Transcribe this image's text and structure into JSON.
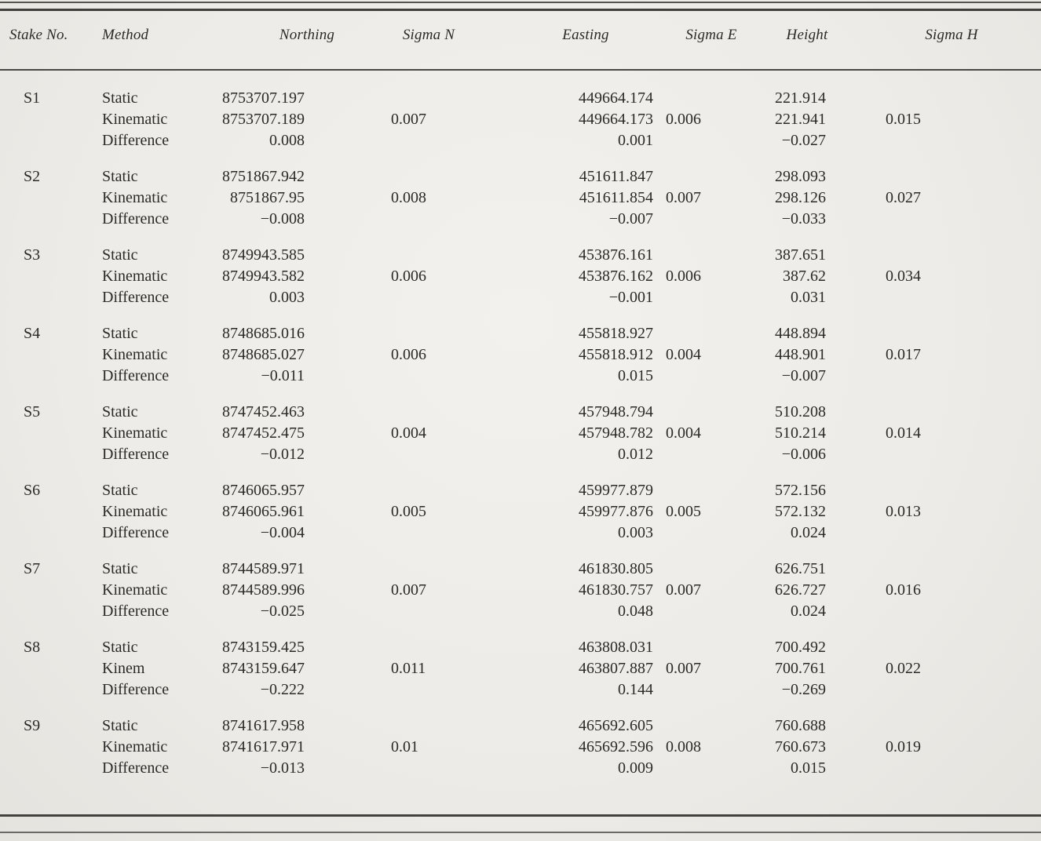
{
  "colors": {
    "paper_background": "#edebe7",
    "ink": "#2b2a28",
    "rule": "#454443"
  },
  "table": {
    "columns": [
      {
        "key": "stake",
        "label": "Stake No."
      },
      {
        "key": "method",
        "label": "Method"
      },
      {
        "key": "northing",
        "label": "Northing"
      },
      {
        "key": "sigma_n",
        "label": "Sigma N"
      },
      {
        "key": "easting",
        "label": "Easting"
      },
      {
        "key": "sigma_e",
        "label": "Sigma E"
      },
      {
        "key": "height",
        "label": "Height"
      },
      {
        "key": "sigma_h",
        "label": "Sigma H"
      }
    ],
    "groups": [
      {
        "stake": "S1",
        "rows": [
          {
            "method": "Static",
            "northing": "8753707.197",
            "sigma_n": "",
            "easting": "449664.174",
            "sigma_e": "",
            "height": "221.914",
            "sigma_h": ""
          },
          {
            "method": "Kinematic",
            "northing": "8753707.189",
            "sigma_n": "0.007",
            "easting": "449664.173",
            "sigma_e": "0.006",
            "height": "221.941",
            "sigma_h": "0.015"
          },
          {
            "method": "Difference",
            "northing": "0.008",
            "sigma_n": "",
            "easting": "0.001",
            "sigma_e": "",
            "height": "−0.027",
            "sigma_h": ""
          }
        ]
      },
      {
        "stake": "S2",
        "rows": [
          {
            "method": "Static",
            "northing": "8751867.942",
            "sigma_n": "",
            "easting": "451611.847",
            "sigma_e": "",
            "height": "298.093",
            "sigma_h": ""
          },
          {
            "method": "Kinematic",
            "northing": "8751867.95",
            "sigma_n": "0.008",
            "easting": "451611.854",
            "sigma_e": "0.007",
            "height": "298.126",
            "sigma_h": "0.027"
          },
          {
            "method": "Difference",
            "northing": "−0.008",
            "sigma_n": "",
            "easting": "−0.007",
            "sigma_e": "",
            "height": "−0.033",
            "sigma_h": ""
          }
        ]
      },
      {
        "stake": "S3",
        "rows": [
          {
            "method": "Static",
            "northing": "8749943.585",
            "sigma_n": "",
            "easting": "453876.161",
            "sigma_e": "",
            "height": "387.651",
            "sigma_h": ""
          },
          {
            "method": "Kinematic",
            "northing": "8749943.582",
            "sigma_n": "0.006",
            "easting": "453876.162",
            "sigma_e": "0.006",
            "height": "387.62",
            "sigma_h": "0.034"
          },
          {
            "method": "Difference",
            "northing": "0.003",
            "sigma_n": "",
            "easting": "−0.001",
            "sigma_e": "",
            "height": "0.031",
            "sigma_h": ""
          }
        ]
      },
      {
        "stake": "S4",
        "rows": [
          {
            "method": "Static",
            "northing": "8748685.016",
            "sigma_n": "",
            "easting": "455818.927",
            "sigma_e": "",
            "height": "448.894",
            "sigma_h": ""
          },
          {
            "method": "Kinematic",
            "northing": "8748685.027",
            "sigma_n": "0.006",
            "easting": "455818.912",
            "sigma_e": "0.004",
            "height": "448.901",
            "sigma_h": "0.017"
          },
          {
            "method": "Difference",
            "northing": "−0.011",
            "sigma_n": "",
            "easting": "0.015",
            "sigma_e": "",
            "height": "−0.007",
            "sigma_h": ""
          }
        ]
      },
      {
        "stake": "S5",
        "rows": [
          {
            "method": "Static",
            "northing": "8747452.463",
            "sigma_n": "",
            "easting": "457948.794",
            "sigma_e": "",
            "height": "510.208",
            "sigma_h": ""
          },
          {
            "method": "Kinematic",
            "northing": "8747452.475",
            "sigma_n": "0.004",
            "easting": "457948.782",
            "sigma_e": "0.004",
            "height": "510.214",
            "sigma_h": "0.014"
          },
          {
            "method": "Difference",
            "northing": "−0.012",
            "sigma_n": "",
            "easting": "0.012",
            "sigma_e": "",
            "height": "−0.006",
            "sigma_h": ""
          }
        ]
      },
      {
        "stake": "S6",
        "rows": [
          {
            "method": "Static",
            "northing": "8746065.957",
            "sigma_n": "",
            "easting": "459977.879",
            "sigma_e": "",
            "height": "572.156",
            "sigma_h": ""
          },
          {
            "method": "Kinematic",
            "northing": "8746065.961",
            "sigma_n": "0.005",
            "easting": "459977.876",
            "sigma_e": "0.005",
            "height": "572.132",
            "sigma_h": "0.013"
          },
          {
            "method": "Difference",
            "northing": "−0.004",
            "sigma_n": "",
            "easting": "0.003",
            "sigma_e": "",
            "height": "0.024",
            "sigma_h": ""
          }
        ]
      },
      {
        "stake": "S7",
        "rows": [
          {
            "method": "Static",
            "northing": "8744589.971",
            "sigma_n": "",
            "easting": "461830.805",
            "sigma_e": "",
            "height": "626.751",
            "sigma_h": ""
          },
          {
            "method": "Kinematic",
            "northing": "8744589.996",
            "sigma_n": "0.007",
            "easting": "461830.757",
            "sigma_e": "0.007",
            "height": "626.727",
            "sigma_h": "0.016"
          },
          {
            "method": "Difference",
            "northing": "−0.025",
            "sigma_n": "",
            "easting": "0.048",
            "sigma_e": "",
            "height": "0.024",
            "sigma_h": ""
          }
        ]
      },
      {
        "stake": "S8",
        "rows": [
          {
            "method": "Static",
            "northing": "8743159.425",
            "sigma_n": "",
            "easting": "463808.031",
            "sigma_e": "",
            "height": "700.492",
            "sigma_h": ""
          },
          {
            "method": "Kinem",
            "northing": "8743159.647",
            "sigma_n": "0.011",
            "easting": "463807.887",
            "sigma_e": "0.007",
            "height": "700.761",
            "sigma_h": "0.022"
          },
          {
            "method": "Difference",
            "northing": "−0.222",
            "sigma_n": "",
            "easting": "0.144",
            "sigma_e": "",
            "height": "−0.269",
            "sigma_h": ""
          }
        ]
      },
      {
        "stake": "S9",
        "rows": [
          {
            "method": "Static",
            "northing": "8741617.958",
            "sigma_n": "",
            "easting": "465692.605",
            "sigma_e": "",
            "height": "760.688",
            "sigma_h": ""
          },
          {
            "method": "Kinematic",
            "northing": "8741617.971",
            "sigma_n": "0.01",
            "easting": "465692.596",
            "sigma_e": "0.008",
            "height": "760.673",
            "sigma_h": "0.019"
          },
          {
            "method": "Difference",
            "northing": "−0.013",
            "sigma_n": "",
            "easting": "0.009",
            "sigma_e": "",
            "height": "0.015",
            "sigma_h": ""
          }
        ]
      }
    ]
  }
}
